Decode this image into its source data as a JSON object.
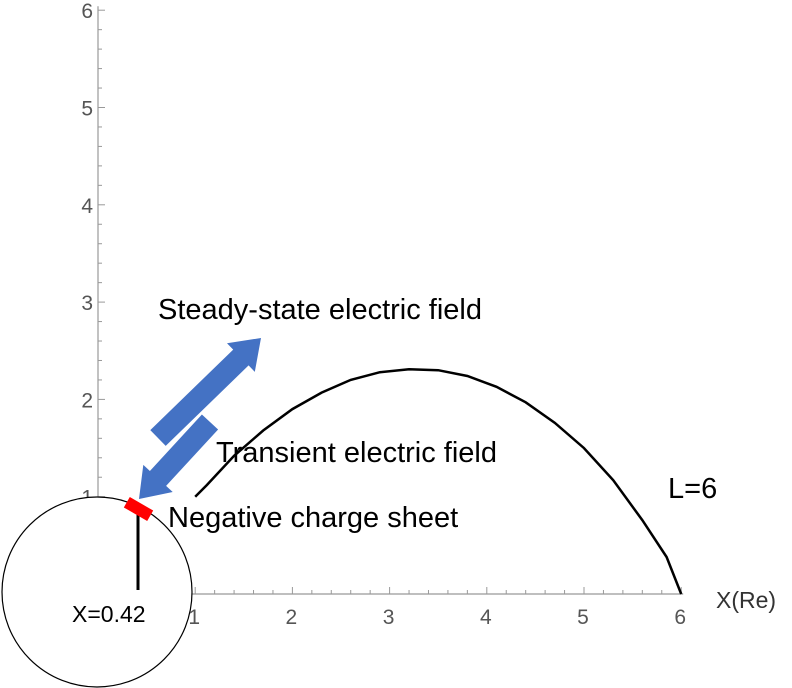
{
  "chart_data": {
    "type": "line",
    "title": "",
    "xlabel": "X(Re)",
    "ylabel": "",
    "xlim": [
      0,
      6
    ],
    "ylim": [
      0,
      6
    ],
    "x_ticks": [
      1,
      2,
      3,
      4,
      5,
      6
    ],
    "y_ticks": [
      1,
      2,
      3,
      4,
      5,
      6
    ],
    "grid": false,
    "series": [
      {
        "name": "L=6",
        "x": [
          1.0,
          1.12,
          1.4,
          1.7,
          2.0,
          2.3,
          2.6,
          2.9,
          3.2,
          3.5,
          3.8,
          4.1,
          4.4,
          4.7,
          5.0,
          5.3,
          5.6,
          5.85,
          6.0
        ],
        "y": [
          1.0,
          1.12,
          1.42,
          1.68,
          1.9,
          2.07,
          2.2,
          2.28,
          2.31,
          2.3,
          2.24,
          2.13,
          1.97,
          1.76,
          1.5,
          1.17,
          0.76,
          0.38,
          0.0
        ]
      }
    ],
    "annotations": {
      "steady_label": "Steady-state electric field",
      "transient_label": "Transient electric field",
      "sheet_label": "Negative charge sheet",
      "field_line_label": "L=6",
      "earth_label": "X=0.42"
    }
  },
  "colors": {
    "arrow": "#4472C4",
    "sheet": "#FF0000",
    "axis": "#999999",
    "curve": "#000000"
  }
}
